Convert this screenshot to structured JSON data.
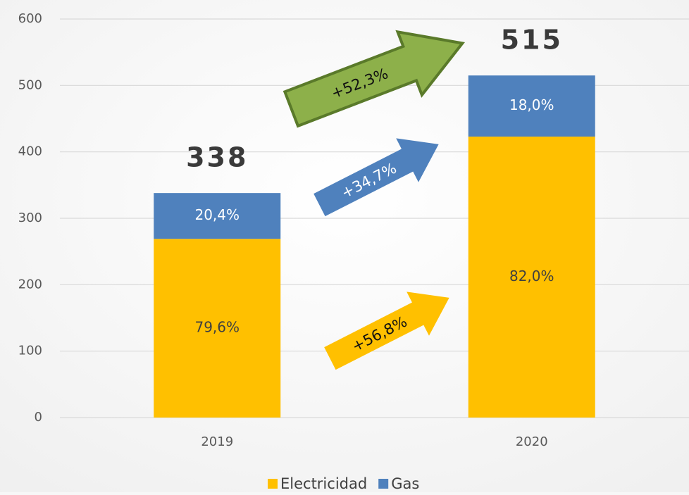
{
  "chart_data": {
    "type": "stacked_bar",
    "categories": [
      "2019",
      "2020"
    ],
    "series": [
      {
        "name": "Electricidad",
        "color": "#ffc000",
        "values": [
          269,
          423
        ],
        "percent": [
          79.6,
          82.0
        ],
        "percent_labels": [
          "79,6%",
          "82,0%"
        ]
      },
      {
        "name": "Gas",
        "color": "#4f81bd",
        "values": [
          69,
          92
        ],
        "percent": [
          20.4,
          18.0
        ],
        "percent_labels": [
          "20,4%",
          "18,0%"
        ]
      }
    ],
    "totals": [
      338,
      515
    ],
    "ylim": [
      0,
      600
    ],
    "yticks": [
      0,
      100,
      200,
      300,
      400,
      500,
      600
    ],
    "grid": true,
    "legend": "bottom",
    "annotations": [
      {
        "text": "+52,3%",
        "color": "#8db04a"
      },
      {
        "text": "+34,7%",
        "color": "#4f81bd"
      },
      {
        "text": "+56,8%",
        "color": "#ffc000"
      }
    ]
  }
}
